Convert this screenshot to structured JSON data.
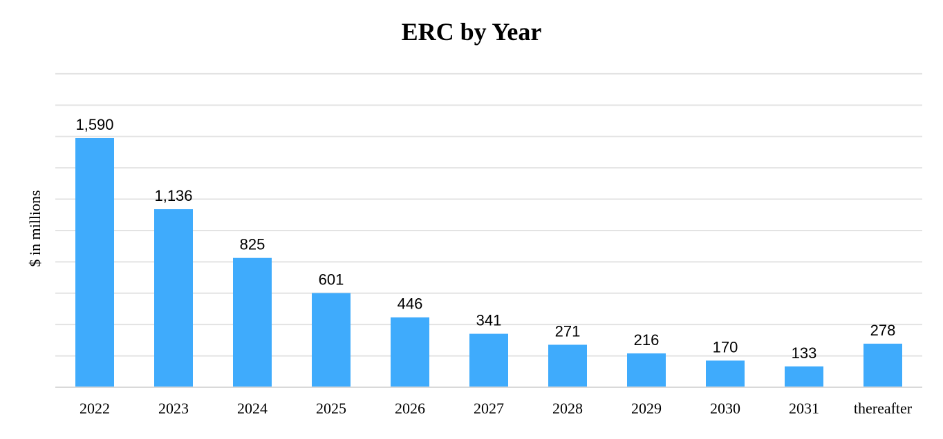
{
  "chart_data": {
    "type": "bar",
    "title": "ERC by Year",
    "xlabel": "",
    "ylabel": "$ in millions",
    "categories": [
      "2022",
      "2023",
      "2024",
      "2025",
      "2026",
      "2027",
      "2028",
      "2029",
      "2030",
      "2031",
      "thereafter"
    ],
    "values": [
      1590,
      1136,
      825,
      601,
      446,
      341,
      271,
      216,
      170,
      133,
      278
    ],
    "data_labels": [
      "1,590",
      "1,136",
      "825",
      "601",
      "446",
      "341",
      "271",
      "216",
      "170",
      "133",
      "278"
    ],
    "ylim": [
      0,
      2000
    ],
    "grid": true,
    "legend": "none",
    "colors": {
      "bar": "#3fabfc",
      "grid": "#e3e3e3"
    }
  }
}
